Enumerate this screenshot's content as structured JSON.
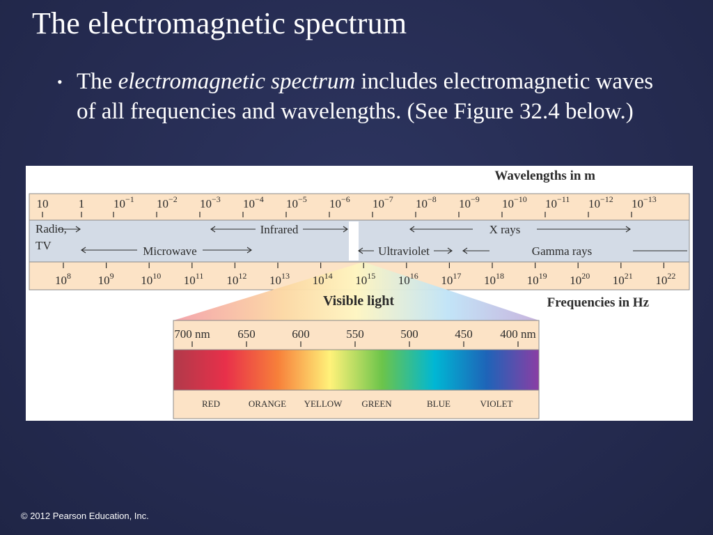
{
  "slide": {
    "title": "The electromagnetic spectrum",
    "bullet": {
      "prefix": "The ",
      "emphasis": "electromagnetic spectrum",
      "suffix": " includes electromagnetic waves of all frequencies and wavelengths. (See Figure 32.4 below.)"
    },
    "copyright": "© 2012 Pearson Education, Inc."
  },
  "figure": {
    "wavelength_heading": "Wavelengths in m",
    "frequency_heading": "Frequencies in Hz",
    "visible_heading": "Visible light",
    "wavelength_ticks": [
      {
        "base": "10",
        "exp": ""
      },
      {
        "base": "1",
        "exp": ""
      },
      {
        "base": "10",
        "exp": "−1"
      },
      {
        "base": "10",
        "exp": "−2"
      },
      {
        "base": "10",
        "exp": "−3"
      },
      {
        "base": "10",
        "exp": "−4"
      },
      {
        "base": "10",
        "exp": "−5"
      },
      {
        "base": "10",
        "exp": "−6"
      },
      {
        "base": "10",
        "exp": "−7"
      },
      {
        "base": "10",
        "exp": "−8"
      },
      {
        "base": "10",
        "exp": "−9"
      },
      {
        "base": "10",
        "exp": "−10"
      },
      {
        "base": "10",
        "exp": "−11"
      },
      {
        "base": "10",
        "exp": "−12"
      },
      {
        "base": "10",
        "exp": "−13"
      }
    ],
    "frequency_ticks": [
      {
        "base": "10",
        "exp": "8"
      },
      {
        "base": "10",
        "exp": "9"
      },
      {
        "base": "10",
        "exp": "10"
      },
      {
        "base": "10",
        "exp": "11"
      },
      {
        "base": "10",
        "exp": "12"
      },
      {
        "base": "10",
        "exp": "13"
      },
      {
        "base": "10",
        "exp": "14"
      },
      {
        "base": "10",
        "exp": "15"
      },
      {
        "base": "10",
        "exp": "16"
      },
      {
        "base": "10",
        "exp": "17"
      },
      {
        "base": "10",
        "exp": "18"
      },
      {
        "base": "10",
        "exp": "19"
      },
      {
        "base": "10",
        "exp": "20"
      },
      {
        "base": "10",
        "exp": "21"
      },
      {
        "base": "10",
        "exp": "22"
      }
    ],
    "bands": {
      "radio_line1": "Radio,",
      "radio_line2": "TV",
      "infrared": "Infrared",
      "microwave": "Microwave",
      "x_rays": "X rays",
      "ultraviolet": "Ultraviolet",
      "gamma_rays": "Gamma rays"
    },
    "visible_ticks": [
      "700 nm",
      "650",
      "600",
      "550",
      "500",
      "450",
      "400 nm"
    ],
    "visible_colors": [
      "RED",
      "ORANGE",
      "YELLOW",
      "GREEN",
      "BLUE",
      "VIOLET"
    ],
    "palette": {
      "scale_band": "#fce3c6",
      "region_band": "#d3dbe6",
      "gridline": "#8a8a8a",
      "text_dark": "#2b2b2b",
      "spectrum_stops": [
        "#b03a4a",
        "#e8304a",
        "#f7803a",
        "#fff27a",
        "#6cc44a",
        "#00b7d4",
        "#1e64b8",
        "#8a3ea4"
      ]
    }
  }
}
